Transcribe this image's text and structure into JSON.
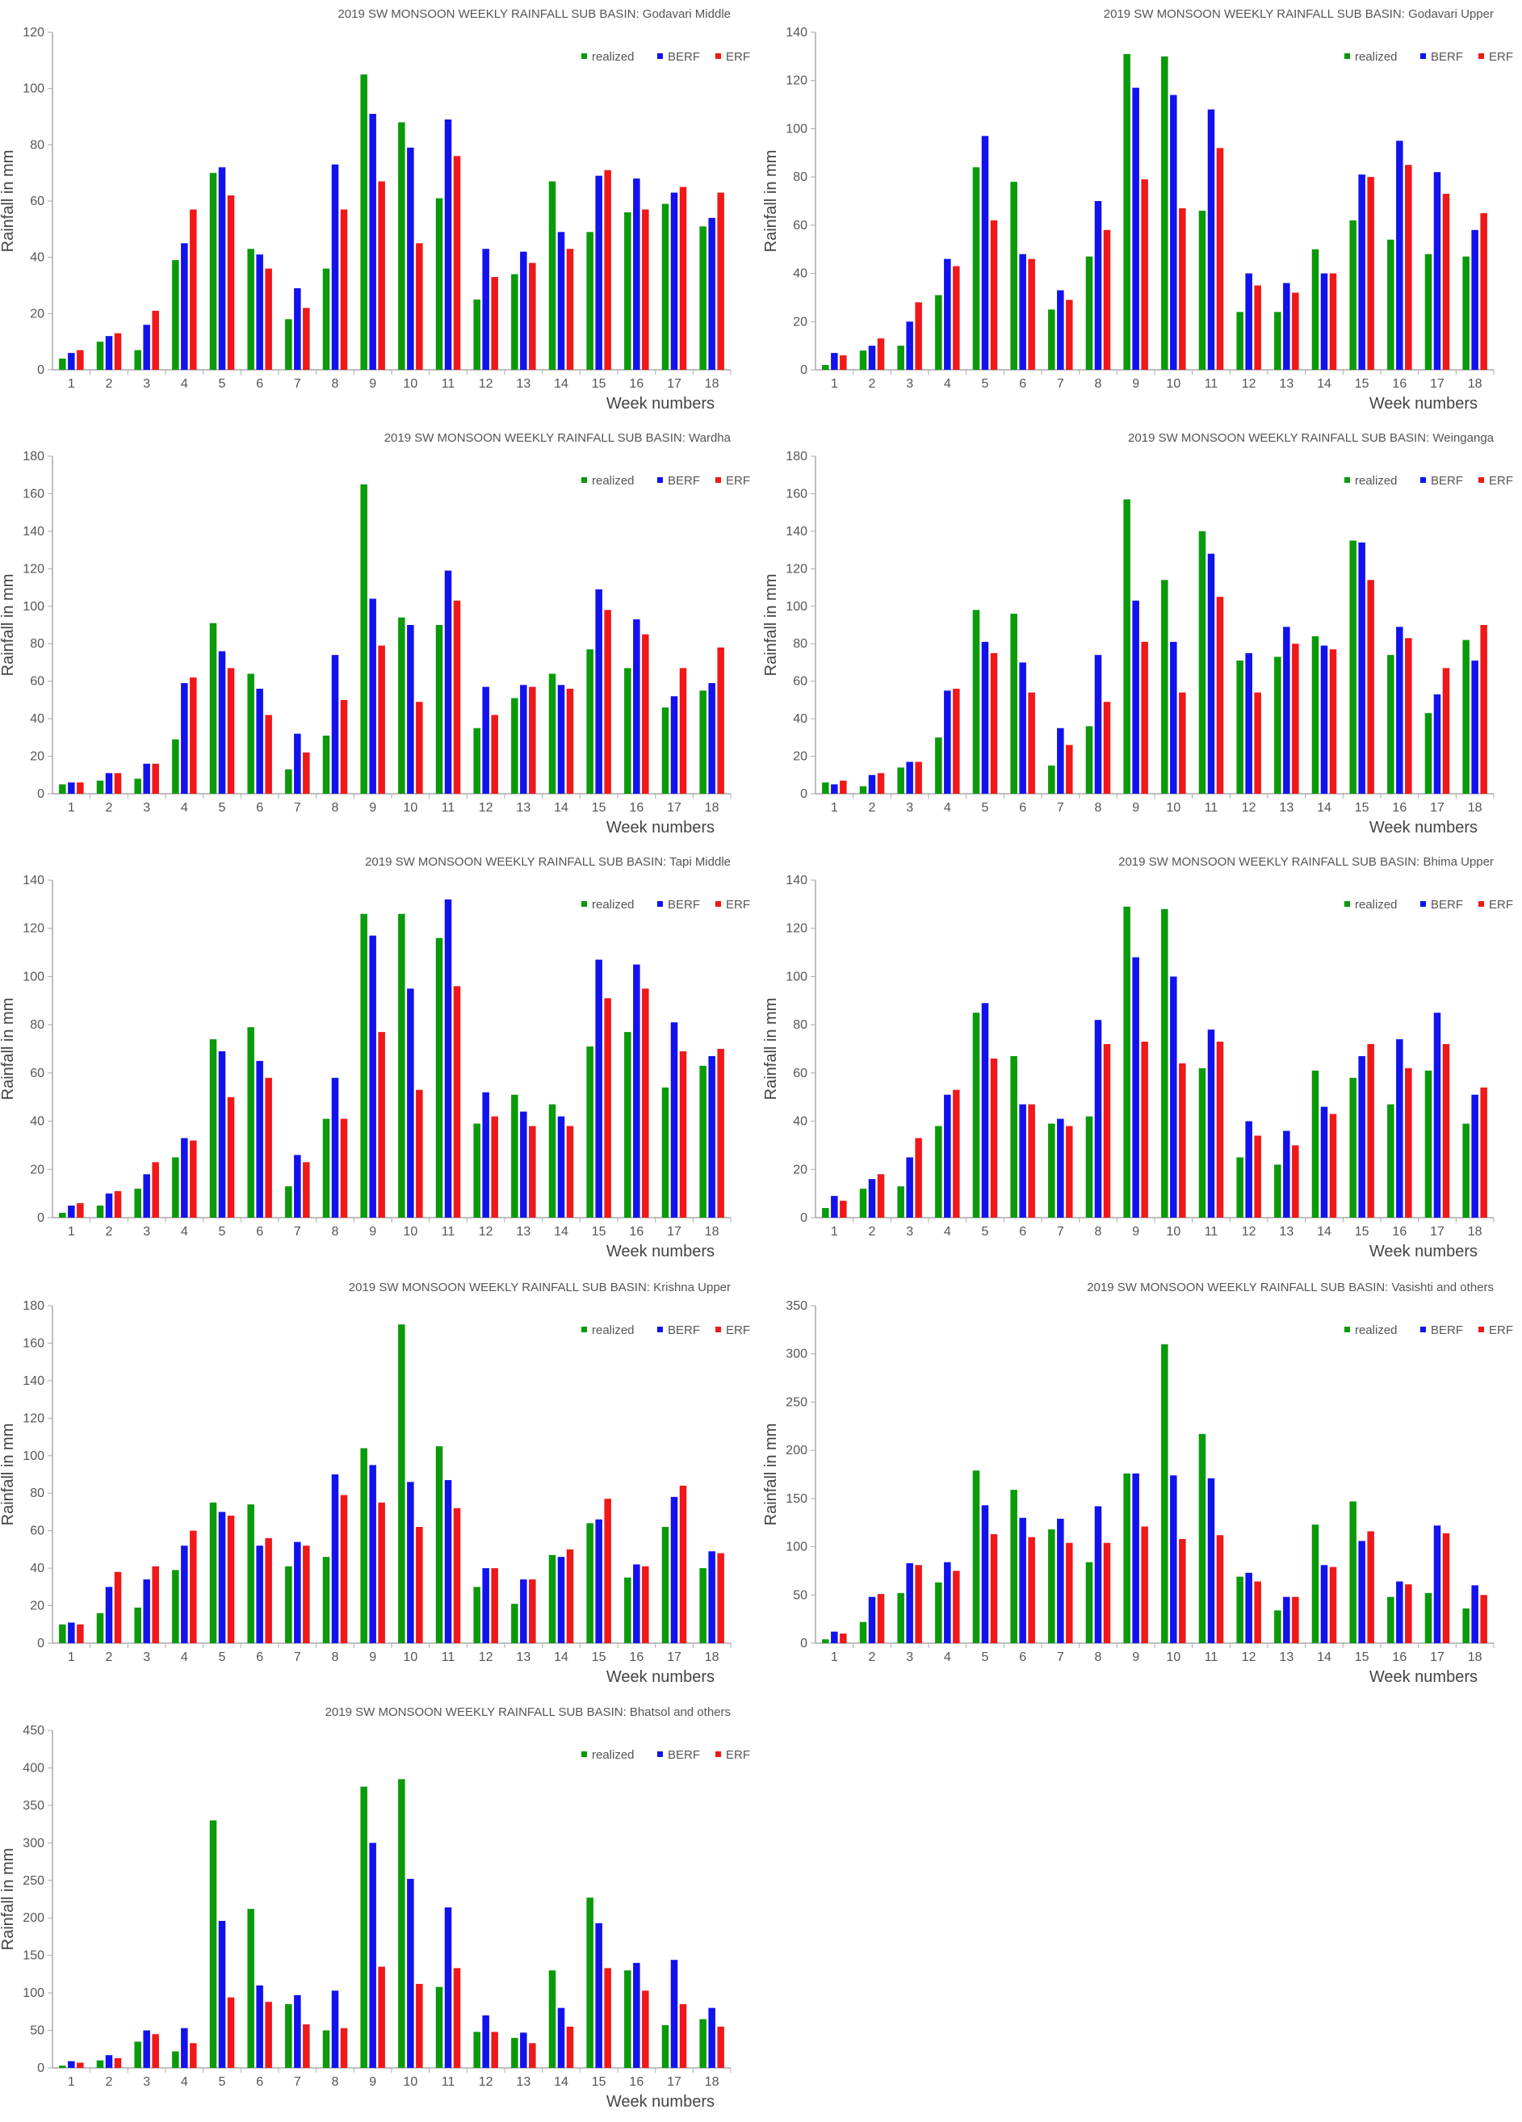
{
  "legend_labels": [
    "realized",
    "BERF",
    "ERF"
  ],
  "colors": {
    "realized": "#0a9a0a",
    "BERF": "#1212ee",
    "ERF": "#f01818"
  },
  "chart_data": [
    {
      "type": "bar",
      "title": "2019 SW MONSOON WEEKLY RAINFALL SUB BASIN: Godavari Middle",
      "xlabel": "Week numbers",
      "ylabel": "Rainfall in mm",
      "ylim": [
        0,
        120
      ],
      "yticks": [
        0,
        20,
        40,
        60,
        80,
        100,
        120
      ],
      "categories": [
        "1",
        "2",
        "3",
        "4",
        "5",
        "6",
        "7",
        "8",
        "9",
        "10",
        "11",
        "12",
        "13",
        "14",
        "15",
        "16",
        "17",
        "18"
      ],
      "series": [
        {
          "name": "realized",
          "values": [
            4,
            10,
            7,
            39,
            70,
            43,
            18,
            36,
            105,
            88,
            61,
            25,
            34,
            67,
            49,
            56,
            59,
            51
          ]
        },
        {
          "name": "BERF",
          "values": [
            6,
            12,
            16,
            45,
            72,
            41,
            29,
            73,
            91,
            79,
            89,
            43,
            42,
            49,
            69,
            68,
            63,
            54
          ]
        },
        {
          "name": "ERF",
          "values": [
            7,
            13,
            21,
            57,
            62,
            36,
            22,
            57,
            67,
            45,
            76,
            33,
            38,
            43,
            71,
            57,
            65,
            63
          ]
        }
      ],
      "grid": false,
      "legend": "top-right"
    },
    {
      "type": "bar",
      "title": "2019 SW MONSOON WEEKLY RAINFALL SUB BASIN: Godavari Upper",
      "xlabel": "Week numbers",
      "ylabel": "Rainfall in mm",
      "ylim": [
        0,
        140
      ],
      "yticks": [
        0,
        20,
        40,
        60,
        80,
        100,
        120,
        140
      ],
      "categories": [
        "1",
        "2",
        "3",
        "4",
        "5",
        "6",
        "7",
        "8",
        "9",
        "10",
        "11",
        "12",
        "13",
        "14",
        "15",
        "16",
        "17",
        "18"
      ],
      "series": [
        {
          "name": "realized",
          "values": [
            2,
            8,
            10,
            31,
            84,
            78,
            25,
            47,
            131,
            130,
            66,
            24,
            24,
            50,
            62,
            54,
            48,
            47
          ]
        },
        {
          "name": "BERF",
          "values": [
            7,
            10,
            20,
            46,
            97,
            48,
            33,
            70,
            117,
            114,
            108,
            40,
            36,
            40,
            81,
            95,
            82,
            58
          ]
        },
        {
          "name": "ERF",
          "values": [
            6,
            13,
            28,
            43,
            62,
            46,
            29,
            58,
            79,
            67,
            92,
            35,
            32,
            40,
            80,
            85,
            73,
            65
          ]
        }
      ],
      "grid": false,
      "legend": "top-right"
    },
    {
      "type": "bar",
      "title": "2019 SW MONSOON WEEKLY RAINFALL SUB BASIN: Wardha",
      "xlabel": "Week numbers",
      "ylabel": "Rainfall in mm",
      "ylim": [
        0,
        180
      ],
      "yticks": [
        0,
        20,
        40,
        60,
        80,
        100,
        120,
        140,
        160,
        180
      ],
      "categories": [
        "1",
        "2",
        "3",
        "4",
        "5",
        "6",
        "7",
        "8",
        "9",
        "10",
        "11",
        "12",
        "13",
        "14",
        "15",
        "16",
        "17",
        "18"
      ],
      "series": [
        {
          "name": "realized",
          "values": [
            5,
            7,
            8,
            29,
            91,
            64,
            13,
            31,
            165,
            94,
            90,
            35,
            51,
            64,
            77,
            67,
            46,
            55
          ]
        },
        {
          "name": "BERF",
          "values": [
            6,
            11,
            16,
            59,
            76,
            56,
            32,
            74,
            104,
            90,
            119,
            57,
            58,
            58,
            109,
            93,
            52,
            59
          ]
        },
        {
          "name": "ERF",
          "values": [
            6,
            11,
            16,
            62,
            67,
            42,
            22,
            50,
            79,
            49,
            103,
            42,
            57,
            56,
            98,
            85,
            67,
            78
          ]
        }
      ],
      "grid": false,
      "legend": "top-right"
    },
    {
      "type": "bar",
      "title": "2019 SW MONSOON WEEKLY RAINFALL SUB BASIN: Weinganga",
      "xlabel": "Week numbers",
      "ylabel": "Rainfall in mm",
      "ylim": [
        0,
        180
      ],
      "yticks": [
        0,
        20,
        40,
        60,
        80,
        100,
        120,
        140,
        160,
        180
      ],
      "categories": [
        "1",
        "2",
        "3",
        "4",
        "5",
        "6",
        "7",
        "8",
        "9",
        "10",
        "11",
        "12",
        "13",
        "14",
        "15",
        "16",
        "17",
        "18"
      ],
      "series": [
        {
          "name": "realized",
          "values": [
            6,
            4,
            14,
            30,
            98,
            96,
            15,
            36,
            157,
            114,
            140,
            71,
            73,
            84,
            135,
            74,
            43,
            82
          ]
        },
        {
          "name": "BERF",
          "values": [
            5,
            10,
            17,
            55,
            81,
            70,
            35,
            74,
            103,
            81,
            128,
            75,
            89,
            79,
            134,
            89,
            53,
            71
          ]
        },
        {
          "name": "ERF",
          "values": [
            7,
            11,
            17,
            56,
            75,
            54,
            26,
            49,
            81,
            54,
            105,
            54,
            80,
            77,
            114,
            83,
            67,
            90
          ]
        }
      ],
      "grid": false,
      "legend": "top-right"
    },
    {
      "type": "bar",
      "title": "2019 SW MONSOON WEEKLY RAINFALL SUB BASIN: Tapi Middle",
      "xlabel": "Week numbers",
      "ylabel": "Rainfall in mm",
      "ylim": [
        0,
        140
      ],
      "yticks": [
        0,
        20,
        40,
        60,
        80,
        100,
        120,
        140
      ],
      "categories": [
        "1",
        "2",
        "3",
        "4",
        "5",
        "6",
        "7",
        "8",
        "9",
        "10",
        "11",
        "12",
        "13",
        "14",
        "15",
        "16",
        "17",
        "18"
      ],
      "series": [
        {
          "name": "realized",
          "values": [
            2,
            5,
            12,
            25,
            74,
            79,
            13,
            41,
            126,
            126,
            116,
            39,
            51,
            47,
            71,
            77,
            54,
            63
          ]
        },
        {
          "name": "BERF",
          "values": [
            5,
            10,
            18,
            33,
            69,
            65,
            26,
            58,
            117,
            95,
            132,
            52,
            44,
            42,
            107,
            105,
            81,
            67
          ]
        },
        {
          "name": "ERF",
          "values": [
            6,
            11,
            23,
            32,
            50,
            58,
            23,
            41,
            77,
            53,
            96,
            42,
            38,
            38,
            91,
            95,
            69,
            70
          ]
        }
      ],
      "grid": false,
      "legend": "top-right"
    },
    {
      "type": "bar",
      "title": "2019 SW MONSOON WEEKLY RAINFALL SUB BASIN: Bhima Upper",
      "xlabel": "Week numbers",
      "ylabel": "Rainfall in mm",
      "ylim": [
        0,
        140
      ],
      "yticks": [
        0,
        20,
        40,
        60,
        80,
        100,
        120,
        140
      ],
      "categories": [
        "1",
        "2",
        "3",
        "4",
        "5",
        "6",
        "7",
        "8",
        "9",
        "10",
        "11",
        "12",
        "13",
        "14",
        "15",
        "16",
        "17",
        "18"
      ],
      "series": [
        {
          "name": "realized",
          "values": [
            4,
            12,
            13,
            38,
            85,
            67,
            39,
            42,
            129,
            128,
            62,
            25,
            22,
            61,
            58,
            47,
            61,
            39
          ]
        },
        {
          "name": "BERF",
          "values": [
            9,
            16,
            25,
            51,
            89,
            47,
            41,
            82,
            108,
            100,
            78,
            40,
            36,
            46,
            67,
            74,
            85,
            51
          ]
        },
        {
          "name": "ERF",
          "values": [
            7,
            18,
            33,
            53,
            66,
            47,
            38,
            72,
            73,
            64,
            73,
            34,
            30,
            43,
            72,
            62,
            72,
            54
          ]
        }
      ],
      "grid": false,
      "legend": "top-right"
    },
    {
      "type": "bar",
      "title": "2019 SW MONSOON WEEKLY RAINFALL SUB BASIN: Krishna Upper",
      "xlabel": "Week numbers",
      "ylabel": "Rainfall in mm",
      "ylim": [
        0,
        180
      ],
      "yticks": [
        0,
        20,
        40,
        60,
        80,
        100,
        120,
        140,
        160,
        180
      ],
      "categories": [
        "1",
        "2",
        "3",
        "4",
        "5",
        "6",
        "7",
        "8",
        "9",
        "10",
        "11",
        "12",
        "13",
        "14",
        "15",
        "16",
        "17",
        "18"
      ],
      "series": [
        {
          "name": "realized",
          "values": [
            10,
            16,
            19,
            39,
            75,
            74,
            41,
            46,
            104,
            170,
            105,
            30,
            21,
            47,
            64,
            35,
            62,
            40
          ]
        },
        {
          "name": "BERF",
          "values": [
            11,
            30,
            34,
            52,
            70,
            52,
            54,
            90,
            95,
            86,
            87,
            40,
            34,
            46,
            66,
            42,
            78,
            49
          ]
        },
        {
          "name": "ERF",
          "values": [
            10,
            38,
            41,
            60,
            68,
            56,
            52,
            79,
            75,
            62,
            72,
            40,
            34,
            50,
            77,
            41,
            84,
            48
          ]
        }
      ],
      "grid": false,
      "legend": "top-right"
    },
    {
      "type": "bar",
      "title": "2019 SW MONSOON WEEKLY RAINFALL SUB BASIN: Vasishti and others",
      "xlabel": "Week numbers",
      "ylabel": "Rainfall in mm",
      "ylim": [
        0,
        350
      ],
      "yticks": [
        0,
        50,
        100,
        150,
        200,
        250,
        300,
        350
      ],
      "categories": [
        "1",
        "2",
        "3",
        "4",
        "5",
        "6",
        "7",
        "8",
        "9",
        "10",
        "11",
        "12",
        "13",
        "14",
        "15",
        "16",
        "17",
        "18"
      ],
      "series": [
        {
          "name": "realized",
          "values": [
            4,
            22,
            52,
            63,
            179,
            159,
            118,
            84,
            176,
            310,
            217,
            69,
            34,
            123,
            147,
            48,
            52,
            36
          ]
        },
        {
          "name": "BERF",
          "values": [
            12,
            48,
            83,
            84,
            143,
            130,
            129,
            142,
            176,
            174,
            171,
            73,
            48,
            81,
            106,
            64,
            122,
            60
          ]
        },
        {
          "name": "ERF",
          "values": [
            10,
            51,
            81,
            75,
            113,
            110,
            104,
            104,
            121,
            108,
            112,
            64,
            48,
            79,
            116,
            61,
            114,
            50
          ]
        }
      ],
      "grid": false,
      "legend": "top-right"
    },
    {
      "type": "bar",
      "title": "2019 SW MONSOON WEEKLY RAINFALL SUB BASIN: Bhatsol and others",
      "xlabel": "Week numbers",
      "ylabel": "Rainfall in mm",
      "ylim": [
        0,
        450
      ],
      "yticks": [
        0,
        50,
        100,
        150,
        200,
        250,
        300,
        350,
        400,
        450
      ],
      "categories": [
        "1",
        "2",
        "3",
        "4",
        "5",
        "6",
        "7",
        "8",
        "9",
        "10",
        "11",
        "12",
        "13",
        "14",
        "15",
        "16",
        "17",
        "18"
      ],
      "series": [
        {
          "name": "realized",
          "values": [
            3,
            10,
            35,
            22,
            330,
            212,
            85,
            50,
            375,
            385,
            108,
            48,
            40,
            130,
            227,
            130,
            57,
            65
          ]
        },
        {
          "name": "BERF",
          "values": [
            9,
            17,
            50,
            53,
            196,
            110,
            97,
            103,
            300,
            252,
            214,
            70,
            47,
            80,
            193,
            140,
            144,
            80
          ]
        },
        {
          "name": "ERF",
          "values": [
            7,
            13,
            45,
            33,
            94,
            88,
            58,
            53,
            135,
            112,
            133,
            48,
            33,
            55,
            133,
            103,
            85,
            55
          ]
        }
      ],
      "grid": false,
      "legend": "top-right"
    }
  ]
}
